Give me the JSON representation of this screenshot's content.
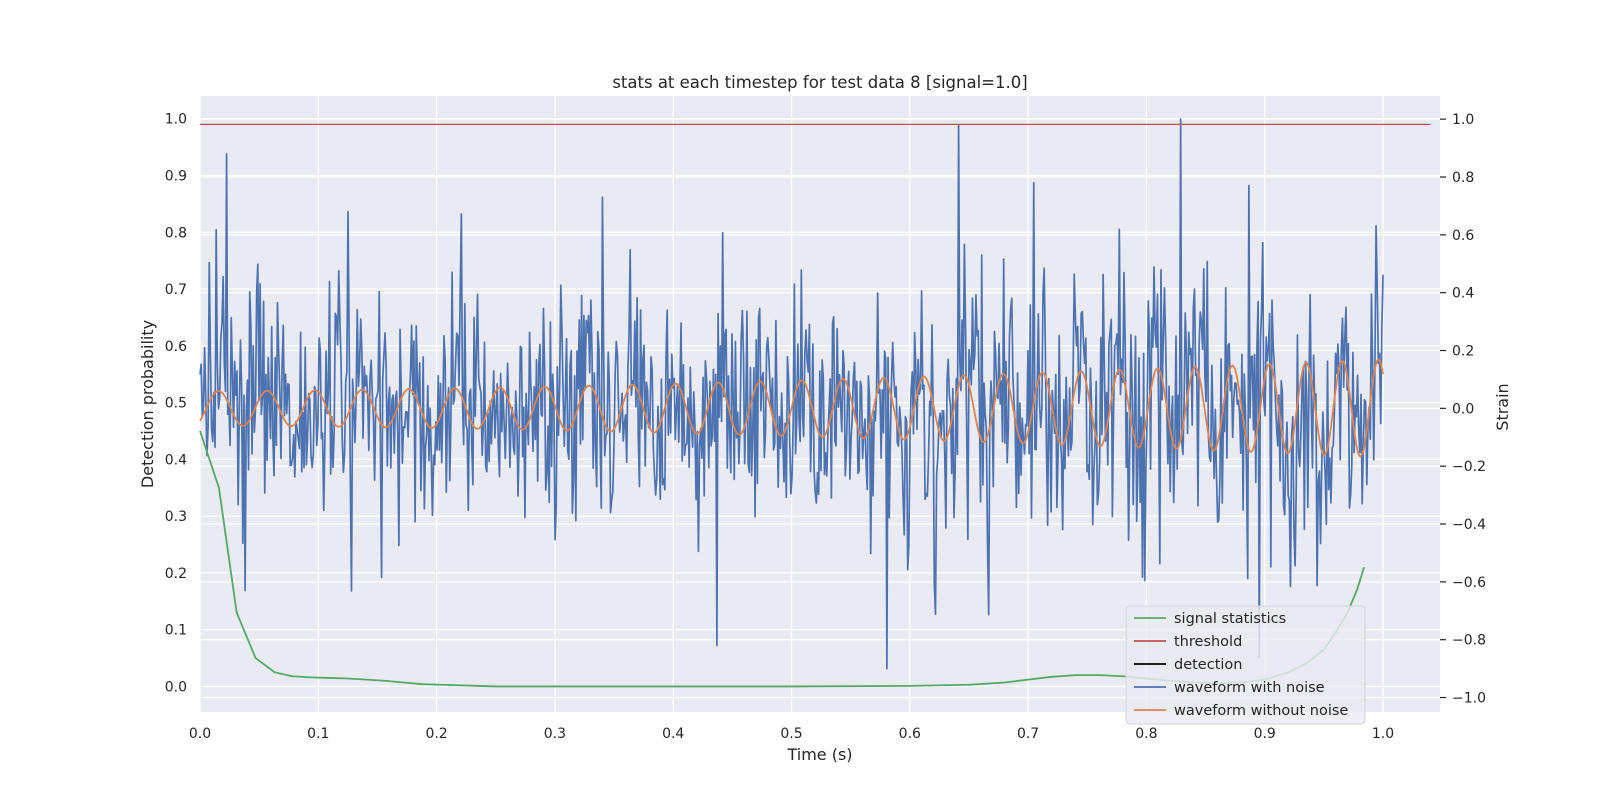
{
  "chart_data": {
    "type": "line",
    "title": "stats at each timestep for test data 8 [signal=1.0]",
    "xlabel": "Time (s)",
    "ylabel": "Detection probability",
    "y2label": "Strain",
    "xlim": [
      0.0,
      1.05
    ],
    "ylim": [
      -0.045,
      1.04
    ],
    "y2lim": [
      -1.05,
      1.08
    ],
    "xticks": [
      "0.0",
      "0.1",
      "0.2",
      "0.3",
      "0.4",
      "0.5",
      "0.6",
      "0.7",
      "0.8",
      "0.9",
      "1.0"
    ],
    "yticks": [
      "0.0",
      "0.1",
      "0.2",
      "0.3",
      "0.4",
      "0.5",
      "0.6",
      "0.7",
      "0.8",
      "0.9",
      "1.0"
    ],
    "y2ticks": [
      "−1.0",
      "−0.8",
      "−0.6",
      "−0.4",
      "−0.2",
      "0.0",
      "0.2",
      "0.4",
      "0.6",
      "0.8",
      "1.0"
    ],
    "grid": true,
    "legend_position": "bottom-right",
    "threshold": 0.99,
    "threshold_x": [
      0.0,
      1.04
    ],
    "colors": {
      "signal_statistics": "#55a868",
      "threshold": "#c44e52",
      "detection": "#000000",
      "waveform_with_noise": "#4c72b0",
      "waveform_without_noise": "#dd8452",
      "plot_background": "#eaeaf2",
      "grid": "#ffffff"
    },
    "legend": [
      {
        "key": "signal_statistics",
        "label": "signal statistics"
      },
      {
        "key": "threshold",
        "label": "threshold"
      },
      {
        "key": "detection",
        "label": "detection"
      },
      {
        "key": "waveform_with_noise",
        "label": "waveform with noise"
      },
      {
        "key": "waveform_without_noise",
        "label": "waveform without noise"
      }
    ],
    "series": {
      "signal_statistics": {
        "axis": "left",
        "x": [
          0.0,
          0.016,
          0.031,
          0.047,
          0.063,
          0.078,
          0.094,
          0.109,
          0.125,
          0.141,
          0.156,
          0.172,
          0.188,
          0.203,
          0.219,
          0.25,
          0.3,
          0.4,
          0.5,
          0.6,
          0.65,
          0.68,
          0.7,
          0.72,
          0.74,
          0.76,
          0.78,
          0.8,
          0.82,
          0.84,
          0.86,
          0.88,
          0.9,
          0.92,
          0.935,
          0.95,
          0.96,
          0.97,
          0.978,
          0.984
        ],
        "y": [
          0.45,
          0.35,
          0.13,
          0.05,
          0.025,
          0.018,
          0.016,
          0.015,
          0.014,
          0.012,
          0.01,
          0.007,
          0.004,
          0.003,
          0.002,
          0.0,
          0.0,
          0.0,
          0.0,
          0.001,
          0.003,
          0.007,
          0.012,
          0.017,
          0.02,
          0.02,
          0.018,
          0.014,
          0.01,
          0.007,
          0.006,
          0.007,
          0.012,
          0.025,
          0.04,
          0.065,
          0.095,
          0.13,
          0.17,
          0.21
        ]
      },
      "waveform_with_noise": {
        "axis": "right",
        "n_points": 1024,
        "x_range": [
          0.0,
          1.0
        ],
        "noise_std": 0.22,
        "peaks": [
          {
            "x": 0.022,
            "y": 0.88
          },
          {
            "x": 0.038,
            "y": -0.63
          },
          {
            "x": 0.125,
            "y": 0.68
          },
          {
            "x": 0.34,
            "y": 0.73
          },
          {
            "x": 0.437,
            "y": -0.82
          },
          {
            "x": 0.581,
            "y": -0.9
          },
          {
            "x": 0.641,
            "y": 0.98
          },
          {
            "x": 0.705,
            "y": 0.78
          },
          {
            "x": 0.829,
            "y": 1.0
          },
          {
            "x": 0.887,
            "y": 0.77
          },
          {
            "x": 0.895,
            "y": -0.86
          }
        ]
      },
      "waveform_without_noise": {
        "axis": "right",
        "n_points": 1024,
        "x_range": [
          0.0,
          1.0
        ],
        "amplitude_start": 0.06,
        "amplitude_end": 0.17,
        "frequency_start_hz": 24,
        "frequency_end_hz": 33
      }
    }
  }
}
